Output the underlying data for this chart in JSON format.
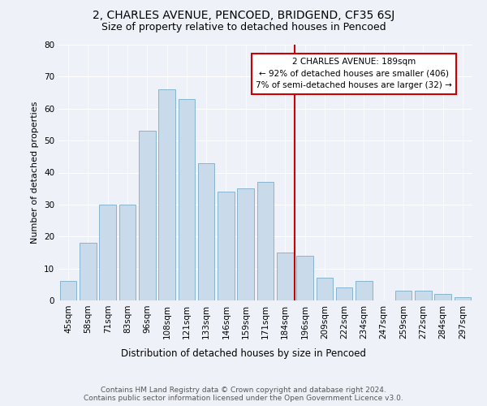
{
  "title": "2, CHARLES AVENUE, PENCOED, BRIDGEND, CF35 6SJ",
  "subtitle": "Size of property relative to detached houses in Pencoed",
  "xlabel": "Distribution of detached houses by size in Pencoed",
  "ylabel": "Number of detached properties",
  "categories": [
    "45sqm",
    "58sqm",
    "71sqm",
    "83sqm",
    "96sqm",
    "108sqm",
    "121sqm",
    "133sqm",
    "146sqm",
    "159sqm",
    "171sqm",
    "184sqm",
    "196sqm",
    "209sqm",
    "222sqm",
    "234sqm",
    "247sqm",
    "259sqm",
    "272sqm",
    "284sqm",
    "297sqm"
  ],
  "values": [
    6,
    18,
    30,
    30,
    53,
    66,
    63,
    43,
    34,
    35,
    37,
    15,
    14,
    7,
    4,
    6,
    0,
    3,
    3,
    2,
    1
  ],
  "bar_color": "#c9daea",
  "bar_edge_color": "#7aaec8",
  "vline_color": "#cc0000",
  "annotation_text": "2 CHARLES AVENUE: 189sqm\n← 92% of detached houses are smaller (406)\n7% of semi-detached houses are larger (32) →",
  "annotation_box_color": "#cc0000",
  "background_color": "#eef2f8",
  "ylim": [
    0,
    80
  ],
  "yticks": [
    0,
    10,
    20,
    30,
    40,
    50,
    60,
    70,
    80
  ],
  "title_fontsize": 10,
  "subtitle_fontsize": 9,
  "xlabel_fontsize": 8.5,
  "ylabel_fontsize": 8,
  "tick_fontsize": 7.5,
  "annotation_fontsize": 7.5,
  "footer_fontsize": 6.5,
  "footer": "Contains HM Land Registry data © Crown copyright and database right 2024.\nContains public sector information licensed under the Open Government Licence v3.0."
}
